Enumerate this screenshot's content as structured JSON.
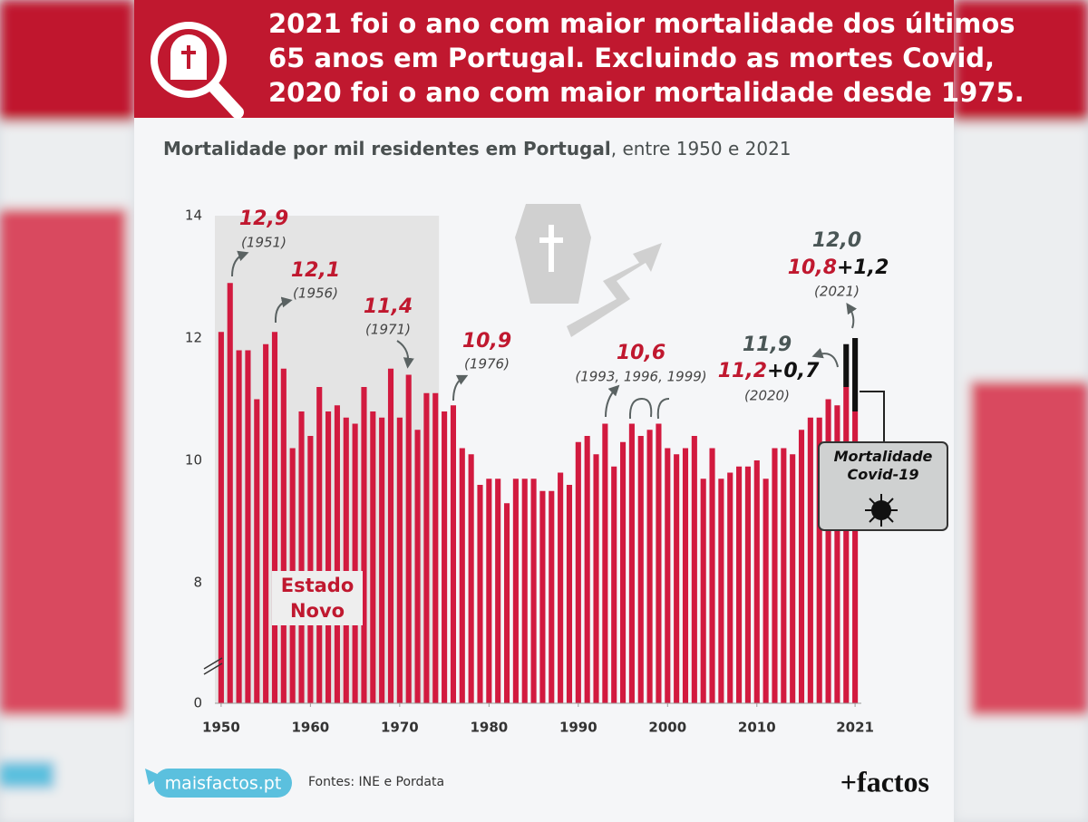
{
  "header": {
    "title": [
      "2021 foi o ano com maior mortalidade dos últimos",
      "65 anos em Portugal. Excluindo as mortes Covid,",
      "2020 foi o ano com maior mortalidade desde 1975."
    ]
  },
  "chart_data": {
    "type": "bar",
    "subtitle": {
      "bold": "Mortalidade por mil residentes em Portugal",
      "rest": ", entre 1950 e 2021"
    },
    "x": [
      1950,
      1951,
      1952,
      1953,
      1954,
      1955,
      1956,
      1957,
      1958,
      1959,
      1960,
      1961,
      1962,
      1963,
      1964,
      1965,
      1966,
      1967,
      1968,
      1969,
      1970,
      1971,
      1972,
      1973,
      1974,
      1975,
      1976,
      1977,
      1978,
      1979,
      1980,
      1981,
      1982,
      1983,
      1984,
      1985,
      1986,
      1987,
      1988,
      1989,
      1990,
      1991,
      1992,
      1993,
      1994,
      1995,
      1996,
      1997,
      1998,
      1999,
      2000,
      2001,
      2002,
      2003,
      2004,
      2005,
      2006,
      2007,
      2008,
      2009,
      2010,
      2011,
      2012,
      2013,
      2014,
      2015,
      2016,
      2017,
      2018,
      2019,
      2020,
      2021
    ],
    "series": [
      {
        "color": "#d21a3f",
        "values": [
          12.1,
          12.9,
          11.8,
          11.8,
          11.0,
          11.9,
          12.1,
          11.5,
          10.2,
          10.8,
          10.4,
          11.2,
          10.8,
          10.9,
          10.7,
          10.6,
          11.2,
          10.8,
          10.7,
          11.5,
          10.7,
          11.4,
          10.5,
          11.1,
          11.1,
          10.8,
          10.9,
          10.2,
          10.1,
          9.6,
          9.7,
          9.7,
          9.3,
          9.7,
          9.7,
          9.7,
          9.5,
          9.5,
          9.8,
          9.6,
          10.3,
          10.4,
          10.1,
          10.6,
          9.9,
          10.3,
          10.6,
          10.4,
          10.5,
          10.6,
          10.2,
          10.1,
          10.2,
          10.4,
          9.7,
          10.2,
          9.7,
          9.8,
          9.9,
          9.9,
          10.0,
          9.7,
          10.2,
          10.2,
          10.1,
          10.5,
          10.7,
          10.7,
          11.0,
          10.9,
          11.2,
          10.8
        ]
      },
      {
        "name": "Mortalidade Covid-19",
        "color": "#111111",
        "values": [
          null,
          null,
          null,
          null,
          null,
          null,
          null,
          null,
          null,
          null,
          null,
          null,
          null,
          null,
          null,
          null,
          null,
          null,
          null,
          null,
          null,
          null,
          null,
          null,
          null,
          null,
          null,
          null,
          null,
          null,
          null,
          null,
          null,
          null,
          null,
          null,
          null,
          null,
          null,
          null,
          null,
          null,
          null,
          null,
          null,
          null,
          null,
          null,
          null,
          null,
          null,
          null,
          null,
          null,
          null,
          null,
          null,
          null,
          null,
          null,
          null,
          null,
          null,
          null,
          null,
          null,
          null,
          null,
          null,
          null,
          0.7,
          1.2
        ]
      }
    ],
    "stacked": true,
    "xlim": [
      1949.3,
      2021.7
    ],
    "xticks": [
      1950,
      1960,
      1970,
      1980,
      1990,
      2000,
      2010,
      2021
    ],
    "ylim": [
      0,
      14
    ],
    "yticks": [
      0,
      8,
      10,
      12,
      14
    ],
    "ybreak": [
      0,
      8
    ],
    "grid": false,
    "shaded_region": {
      "label": "Estado Novo",
      "xlim": [
        1949.3,
        1974.4
      ]
    },
    "annotations": [
      {
        "value": "12,9",
        "note": "(1951)"
      },
      {
        "value": "12,1",
        "note": "(1956)"
      },
      {
        "value": "11,4",
        "note": "(1971)"
      },
      {
        "value": "10,9",
        "note": "(1976)"
      },
      {
        "value": "10,6",
        "note": "(1993, 1996, 1999)"
      },
      {
        "value": "11,9",
        "parts": [
          "11,2",
          "+0,7"
        ],
        "note": "(2020)"
      },
      {
        "value": "12,0",
        "parts": [
          "10,8",
          "+1,2"
        ],
        "note": "(2021)"
      }
    ]
  },
  "footer": {
    "site": "maisfactos.pt",
    "sources": "Fontes: INE e Pordata",
    "logo": "+factos"
  }
}
